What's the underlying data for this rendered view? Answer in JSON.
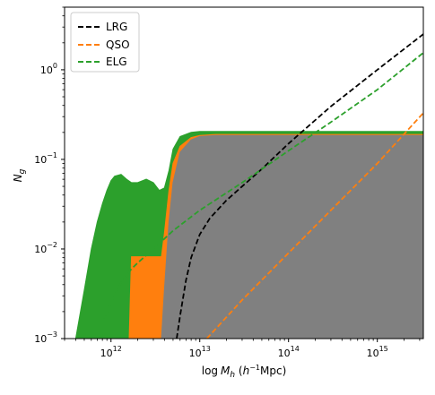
{
  "chart_data": {
    "type": "line",
    "xlabel_parts": {
      "pre": "log",
      "var": "M",
      "sub": "h",
      "unit_open": " (",
      "unit_h": "h",
      "unit_exp": "−1",
      "unit_close": "Mpc)"
    },
    "ylabel_parts": {
      "var": "N",
      "sub": "g"
    },
    "x_scale": "log",
    "y_scale": "log",
    "xlim": [
      300000000000.0,
      3300000000000000.0
    ],
    "ylim": [
      0.001,
      5
    ],
    "x_ticks": [
      {
        "value": 1000000000000.0,
        "base": "10",
        "exp": "12"
      },
      {
        "value": 10000000000000.0,
        "base": "10",
        "exp": "13"
      },
      {
        "value": 100000000000000.0,
        "base": "10",
        "exp": "14"
      },
      {
        "value": 1000000000000000.0,
        "base": "10",
        "exp": "15"
      }
    ],
    "y_ticks": [
      {
        "value": 0.001,
        "base": "10",
        "exp": "−3"
      },
      {
        "value": 0.01,
        "base": "10",
        "exp": "−2"
      },
      {
        "value": 0.1,
        "base": "10",
        "exp": "−1"
      },
      {
        "value": 1,
        "base": "10",
        "exp": "0"
      }
    ],
    "grid": false,
    "legend_position": "top-left",
    "series": [
      {
        "name": "LRG",
        "color": "#000000",
        "style": "dashed",
        "x": [
          5500000000000.0,
          6000000000000.0,
          7000000000000.0,
          8000000000000.0,
          10000000000000.0,
          13000000000000.0,
          20000000000000.0,
          30000000000000.0,
          50000000000000.0,
          100000000000000.0,
          300000000000000.0,
          1000000000000000.0,
          3300000000000000.0
        ],
        "y": [
          0.001,
          0.0018,
          0.0045,
          0.008,
          0.0145,
          0.022,
          0.035,
          0.05,
          0.078,
          0.15,
          0.39,
          1.0,
          2.5
        ]
      },
      {
        "name": "QSO",
        "color": "#ff7f0e",
        "style": "dashed",
        "x": [
          12000000000000.0,
          30000000000000.0,
          100000000000000.0,
          300000000000000.0,
          1000000000000000.0,
          3300000000000000.0
        ],
        "y": [
          0.001,
          0.0027,
          0.009,
          0.027,
          0.09,
          0.33
        ]
      },
      {
        "name": "ELG",
        "color": "#2ca02c",
        "style": "dashed",
        "x": [
          700000000000.0,
          800000000000.0,
          1000000000000.0,
          1300000000000.0,
          1700000000000.0,
          2000000000000.0,
          3000000000000.0,
          5000000000000.0,
          10000000000000.0,
          30000000000000.0,
          100000000000000.0,
          300000000000000.0,
          1000000000000000.0,
          3300000000000000.0
        ],
        "y": [
          0.001,
          0.0015,
          0.0025,
          0.0042,
          0.006,
          0.007,
          0.01,
          0.016,
          0.027,
          0.055,
          0.125,
          0.26,
          0.6,
          1.55
        ]
      }
    ],
    "bands": [
      {
        "name": "ELG",
        "color": "#2ca02c",
        "x": [
          400000000000.0,
          500000000000.0,
          600000000000.0,
          700000000000.0,
          800000000000.0,
          900000000000.0,
          1000000000000.0,
          1100000000000.0,
          1300000000000.0,
          1500000000000.0,
          1700000000000.0,
          2000000000000.0,
          2500000000000.0,
          3000000000000.0,
          3500000000000.0,
          4000000000000.0,
          4500000000000.0,
          5000000000000.0,
          6000000000000.0,
          8000000000000.0,
          10000000000000.0,
          15000000000000.0,
          3300000000000000.0
        ],
        "upper": [
          0.001,
          0.0035,
          0.01,
          0.02,
          0.032,
          0.045,
          0.058,
          0.065,
          0.068,
          0.06,
          0.055,
          0.055,
          0.06,
          0.055,
          0.045,
          0.048,
          0.075,
          0.13,
          0.18,
          0.2,
          0.205,
          0.205,
          0.205
        ],
        "lower": [
          0.001,
          0.001,
          0.001,
          0.001,
          0.001,
          0.001,
          0.001,
          0.001,
          0.001,
          0.001,
          0.001,
          0.001,
          0.001,
          0.001,
          0.001,
          0.001,
          0.001,
          0.001,
          0.001,
          0.001,
          0.001,
          0.001,
          0.001
        ]
      },
      {
        "name": "QSO",
        "color": "#ff7f0e",
        "x": [
          1600000000000.0,
          1700000000000.0,
          3500000000000.0,
          3700000000000.0,
          4000000000000.0,
          4500000000000.0,
          5000000000000.0,
          6000000000000.0,
          8000000000000.0,
          10000000000000.0,
          15000000000000.0,
          3300000000000000.0
        ],
        "upper": [
          0.001,
          0.0082,
          0.0082,
          0.0082,
          0.015,
          0.045,
          0.09,
          0.14,
          0.175,
          0.185,
          0.19,
          0.19
        ],
        "lower": [
          0.001,
          0.001,
          0.001,
          0.001,
          0.001,
          0.001,
          0.001,
          0.001,
          0.001,
          0.001,
          0.001,
          0.001
        ]
      },
      {
        "name": "LRG",
        "color": "#808080",
        "x": [
          3700000000000.0,
          4000000000000.0,
          4500000000000.0,
          5000000000000.0,
          6000000000000.0,
          8000000000000.0,
          10000000000000.0,
          15000000000000.0,
          3300000000000000.0
        ],
        "upper": [
          0.001,
          0.0035,
          0.02,
          0.055,
          0.12,
          0.165,
          0.18,
          0.185,
          0.185
        ],
        "lower": [
          0.001,
          0.001,
          0.001,
          0.001,
          0.001,
          0.001,
          0.001,
          0.001,
          0.001
        ]
      }
    ]
  }
}
